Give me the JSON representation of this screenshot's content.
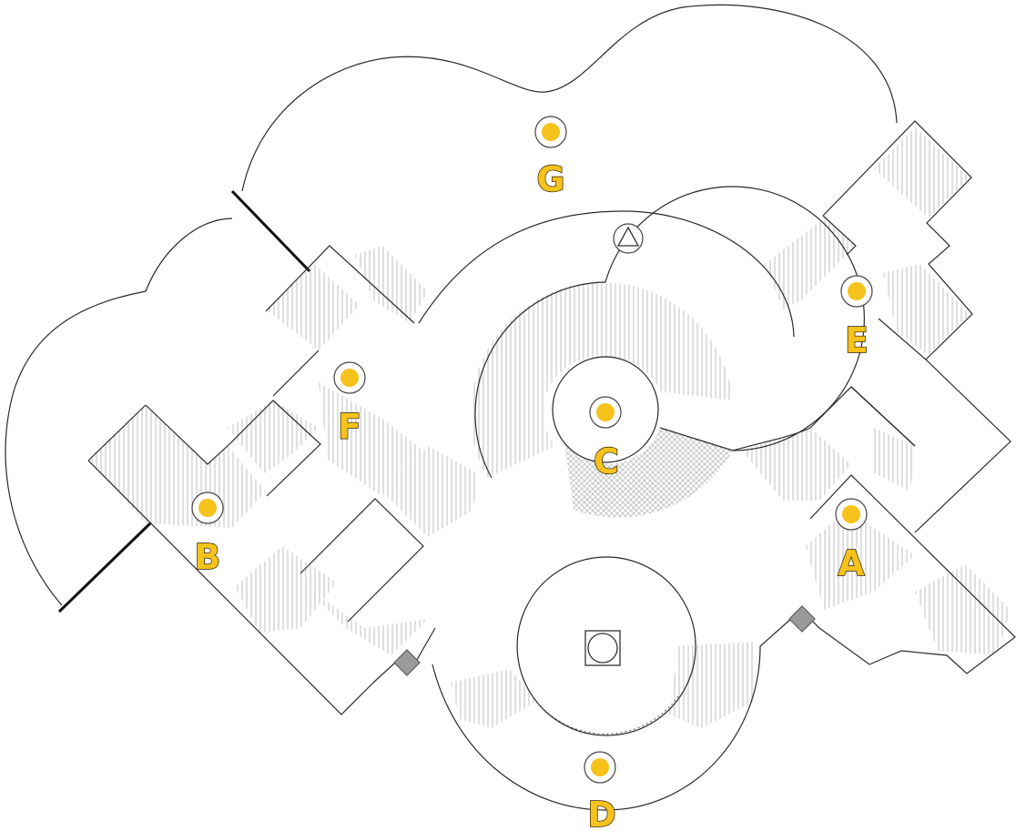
{
  "map": {
    "accent_color": "#f6c21c",
    "icons": {
      "objective": "triangle-icon",
      "spawn": "square-circle-icon"
    },
    "points": [
      {
        "id": "A",
        "label": "A"
      },
      {
        "id": "B",
        "label": "B"
      },
      {
        "id": "C",
        "label": "C"
      },
      {
        "id": "D",
        "label": "D"
      },
      {
        "id": "E",
        "label": "E"
      },
      {
        "id": "F",
        "label": "F"
      },
      {
        "id": "G",
        "label": "G"
      }
    ]
  }
}
